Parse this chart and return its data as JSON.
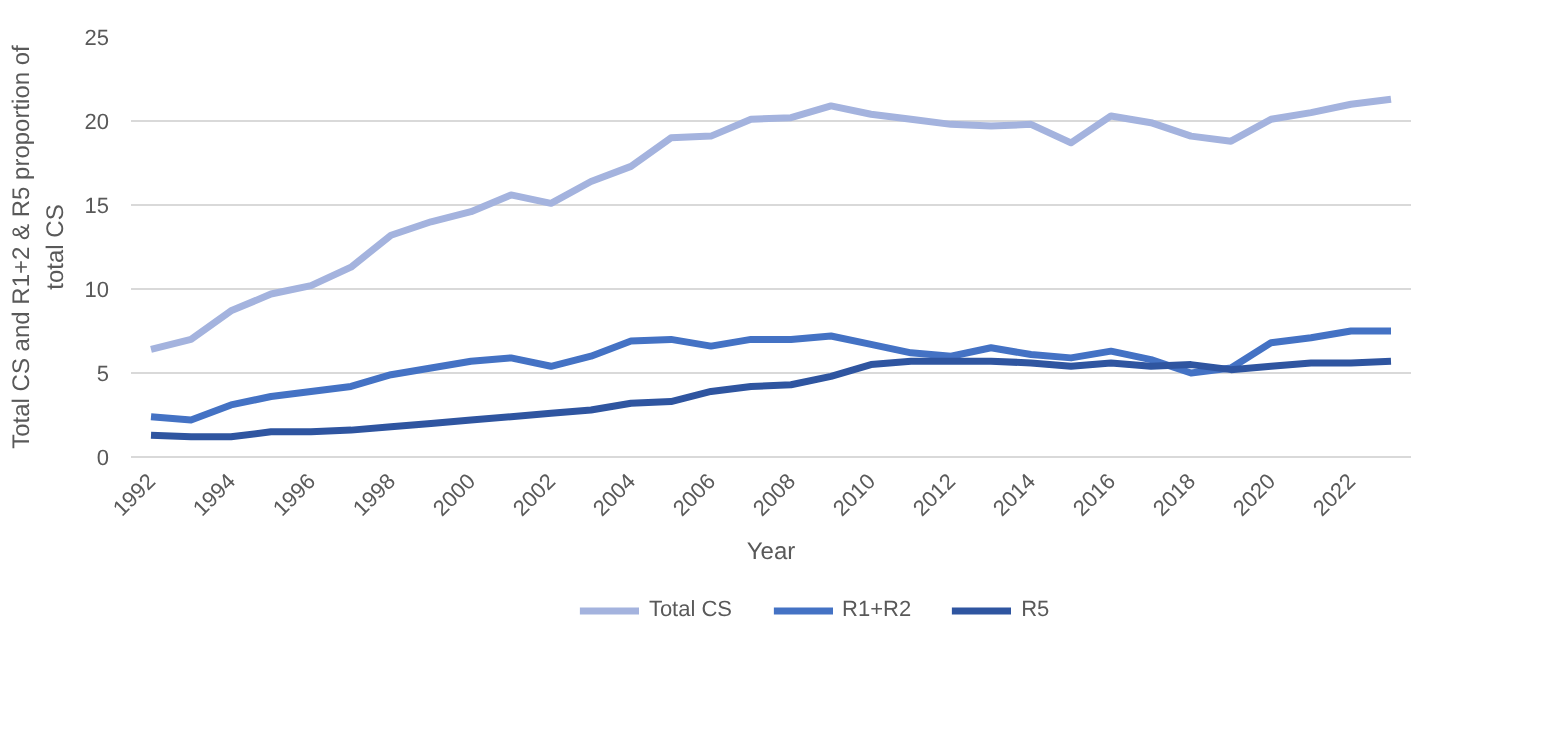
{
  "chart_data": {
    "type": "line",
    "xlabel": "Year",
    "ylabel": "Total CS and R1+2 & R5 proportion of total CS",
    "categories": [
      "1992",
      null,
      "1994",
      null,
      "1996",
      null,
      "1998",
      null,
      "2000",
      null,
      "2002",
      null,
      "2004",
      null,
      "2006",
      null,
      "2008",
      null,
      "2010",
      null,
      "2012",
      null,
      "2014",
      null,
      "2016",
      null,
      "2018",
      null,
      "2020",
      null,
      "2022",
      null
    ],
    "series": [
      {
        "name": "Total CS",
        "color": "#a4b3de",
        "values": [
          6.4,
          7.0,
          8.7,
          9.7,
          10.2,
          11.3,
          13.2,
          14.0,
          14.6,
          15.6,
          15.1,
          16.4,
          17.3,
          19.0,
          19.1,
          20.1,
          20.2,
          20.9,
          20.4,
          20.1,
          19.8,
          19.7,
          19.8,
          18.7,
          20.3,
          19.9,
          19.1,
          18.8,
          20.1,
          20.5,
          21.0,
          21.3
        ]
      },
      {
        "name": "R1+R2",
        "color": "#4472c4",
        "values": [
          2.4,
          2.2,
          3.1,
          3.6,
          3.9,
          4.2,
          4.9,
          5.3,
          5.7,
          5.9,
          5.4,
          6.0,
          6.9,
          7.0,
          6.6,
          7.0,
          7.0,
          7.2,
          6.7,
          6.2,
          6.0,
          6.5,
          6.1,
          5.9,
          6.3,
          5.8,
          5.0,
          5.3,
          6.8,
          7.1,
          7.5,
          7.5
        ]
      },
      {
        "name": "R5",
        "color": "#2f55a0",
        "values": [
          1.3,
          1.2,
          1.2,
          1.5,
          1.5,
          1.6,
          1.8,
          2.0,
          2.2,
          2.4,
          2.6,
          2.8,
          3.2,
          3.3,
          3.9,
          4.2,
          4.3,
          4.8,
          5.5,
          5.7,
          5.7,
          5.7,
          5.6,
          5.4,
          5.6,
          5.4,
          5.5,
          5.2,
          5.4,
          5.6,
          5.6,
          5.7
        ]
      }
    ],
    "ylim": [
      0,
      25
    ],
    "yticks": [
      0,
      5,
      10,
      15,
      20,
      25
    ],
    "grid": "y",
    "legend": "bottom",
    "marker": "none",
    "line_style": "solid"
  }
}
